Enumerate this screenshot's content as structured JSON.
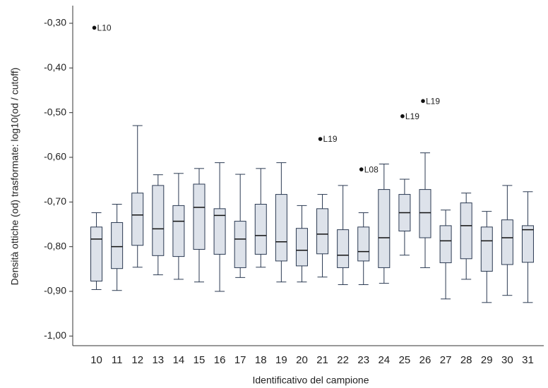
{
  "chart_data": {
    "type": "box",
    "x_label": "Identificativo del campione",
    "y_label": "Densità ottiche (od) trasformate: log10(od / cutoff)",
    "categories": [
      "10",
      "11",
      "12",
      "13",
      "14",
      "15",
      "16",
      "17",
      "18",
      "19",
      "20",
      "21",
      "22",
      "23",
      "24",
      "25",
      "26",
      "27",
      "28",
      "29",
      "30",
      "31"
    ],
    "boxes": [
      {
        "low": -0.896,
        "q1": -0.877,
        "median": -0.783,
        "q3": -0.756,
        "high": -0.724
      },
      {
        "low": -0.898,
        "q1": -0.849,
        "median": -0.8,
        "q3": -0.746,
        "high": -0.705
      },
      {
        "low": -0.846,
        "q1": -0.797,
        "median": -0.729,
        "q3": -0.68,
        "high": -0.529
      },
      {
        "low": -0.863,
        "q1": -0.82,
        "median": -0.76,
        "q3": -0.663,
        "high": -0.639
      },
      {
        "low": -0.873,
        "q1": -0.822,
        "median": -0.743,
        "q3": -0.708,
        "high": -0.636
      },
      {
        "low": -0.879,
        "q1": -0.806,
        "median": -0.712,
        "q3": -0.66,
        "high": -0.625
      },
      {
        "low": -0.9,
        "q1": -0.817,
        "median": -0.73,
        "q3": -0.715,
        "high": -0.612
      },
      {
        "low": -0.869,
        "q1": -0.847,
        "median": -0.783,
        "q3": -0.743,
        "high": -0.638
      },
      {
        "low": -0.846,
        "q1": -0.817,
        "median": -0.775,
        "q3": -0.705,
        "high": -0.625
      },
      {
        "low": -0.879,
        "q1": -0.832,
        "median": -0.789,
        "q3": -0.683,
        "high": -0.612
      },
      {
        "low": -0.879,
        "q1": -0.843,
        "median": -0.808,
        "q3": -0.759,
        "high": -0.708
      },
      {
        "low": -0.868,
        "q1": -0.816,
        "median": -0.772,
        "q3": -0.715,
        "high": -0.683
      },
      {
        "low": -0.885,
        "q1": -0.847,
        "median": -0.819,
        "q3": -0.762,
        "high": -0.663
      },
      {
        "low": -0.885,
        "q1": -0.832,
        "median": -0.811,
        "q3": -0.756,
        "high": -0.724
      },
      {
        "low": -0.882,
        "q1": -0.847,
        "median": -0.78,
        "q3": -0.672,
        "high": -0.615
      },
      {
        "low": -0.819,
        "q1": -0.765,
        "median": -0.724,
        "q3": -0.683,
        "high": -0.649
      },
      {
        "low": -0.847,
        "q1": -0.78,
        "median": -0.724,
        "q3": -0.672,
        "high": -0.59
      },
      {
        "low": -0.917,
        "q1": -0.836,
        "median": -0.787,
        "q3": -0.753,
        "high": -0.718
      },
      {
        "low": -0.873,
        "q1": -0.827,
        "median": -0.753,
        "q3": -0.702,
        "high": -0.68
      },
      {
        "low": -0.925,
        "q1": -0.855,
        "median": -0.787,
        "q3": -0.756,
        "high": -0.721
      },
      {
        "low": -0.909,
        "q1": -0.84,
        "median": -0.78,
        "q3": -0.74,
        "high": -0.663
      },
      {
        "low": -0.925,
        "q1": -0.835,
        "median": -0.762,
        "q3": -0.753,
        "high": -0.677
      }
    ],
    "outliers": [
      {
        "category": "10",
        "value": -0.31,
        "label": "L10"
      },
      {
        "category": "21",
        "value": -0.559,
        "label": "L19"
      },
      {
        "category": "23",
        "value": -0.627,
        "label": "L08"
      },
      {
        "category": "25",
        "value": -0.508,
        "label": "L19"
      },
      {
        "category": "26",
        "value": -0.474,
        "label": "L19"
      }
    ],
    "box_color": "#dde2ea",
    "line_color": "#2b3a52",
    "ylim": [
      -1.02,
      -0.27
    ],
    "yticks": [
      {
        "value": -0.3,
        "label": "-0,30"
      },
      {
        "value": -0.4,
        "label": "-0,40"
      },
      {
        "value": -0.5,
        "label": "-0,50"
      },
      {
        "value": -0.6,
        "label": "-0,60"
      },
      {
        "value": -0.7,
        "label": "-0,70"
      },
      {
        "value": -0.8,
        "label": "-0,80"
      },
      {
        "value": -0.9,
        "label": "-0,90"
      },
      {
        "value": -1.0,
        "label": "-1,00"
      }
    ]
  }
}
